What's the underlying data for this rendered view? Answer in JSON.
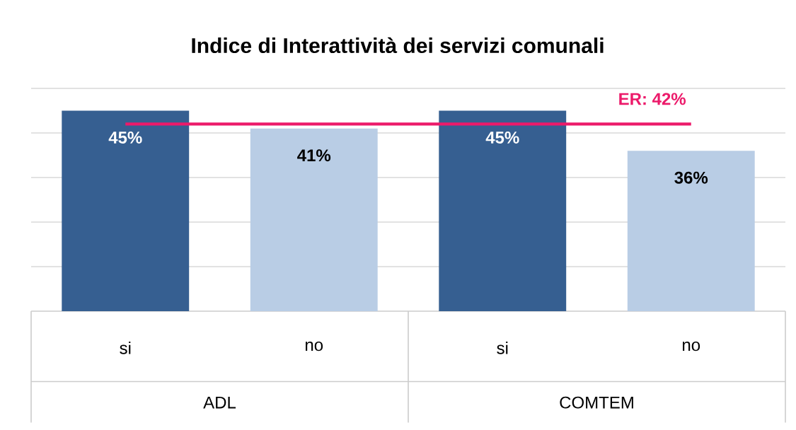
{
  "chart_data": {
    "type": "bar",
    "title": "Indice di Interattività dei servizi comunali",
    "categories": [
      "si",
      "no",
      "si",
      "no"
    ],
    "values": [
      45,
      41,
      45,
      36
    ],
    "colors": [
      "#365f91",
      "#b9cde5",
      "#365f91",
      "#b9cde5"
    ],
    "value_labels": [
      "45%",
      "41%",
      "45%",
      "36%"
    ],
    "ylim": [
      0,
      50
    ],
    "yticks": [
      {
        "value": 0,
        "label": null
      },
      {
        "value": 10,
        "label": null
      },
      {
        "value": 20,
        "label": null
      },
      {
        "value": 30,
        "label": null
      },
      {
        "value": 40,
        "label": null
      },
      {
        "value": 50,
        "label": null
      }
    ],
    "tick_labels": "x",
    "grid": "y",
    "ref_lines": [
      {
        "axis": "y",
        "value": 42,
        "label": "ER: 42%",
        "color": "#ec1a6a"
      }
    ],
    "annotations": [
      "ADL",
      "COMTEM"
    ]
  }
}
